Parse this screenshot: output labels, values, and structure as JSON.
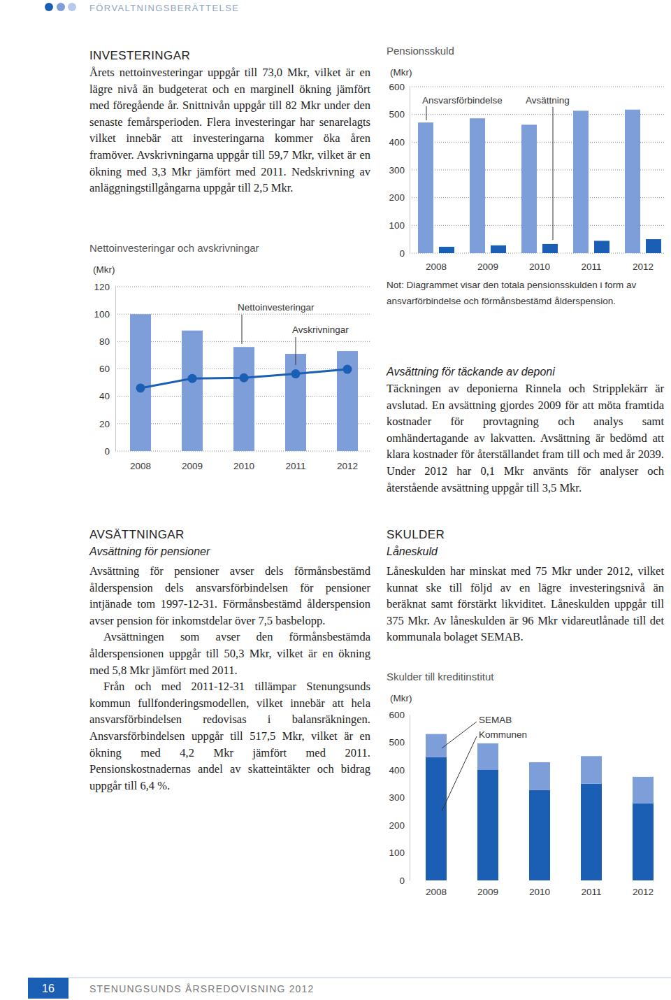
{
  "header": {
    "title": "FÖRVALTNINGSBERÄTTELSE"
  },
  "sections": [
    {
      "heading": "INVESTERINGAR",
      "paragraphs": [
        "Årets nettoinvesteringar uppgår till 73,0 Mkr, vilket är en lägre nivå än budgeterat och en marginell ökning jämfört med föregående år. Snittnivån uppgår till 82 Mkr under den senaste femårsperioden. Flera investeringar har senarelagts vilket innebär att investeringarna kommer öka åren framöver. Avskrivningarna uppgår till 59,7 Mkr, vilket är en ökning med 3,3 Mkr jämfört med 2011. Nedskrivning av anläggningstillgångarna uppgår till 2,5 Mkr."
      ]
    },
    {
      "heading": "Avsättning för täckande av deponi",
      "paragraphs": [
        "Täckningen av deponierna Rinnela och Stripplekärr är avslutad. En avsättning gjordes 2009 för att möta framtida kostnader för provtagning och analys samt omhändertagande av lakvatten. Avsättning är bedömd att klara kostnader för återställandet fram till och med år 2039. Under 2012 har 0,1 Mkr använts för analyser och återstående avsättning uppgår till 3,5 Mkr."
      ]
    },
    {
      "heading": "AVSÄTTNINGAR",
      "subheading": "Avsättning för pensioner",
      "paragraphs": [
        "Avsättning för pensioner avser dels förmånsbestämd ålderspension dels ansvarsförbindelsen för pensioner intjänade tom 1997-12-31. Förmånsbestämd ålderspension avser pension för inkomstdelar över 7,5 basbelopp.",
        "Avsättningen som avser den förmånsbestämda ålderspensionen uppgår till 50,3 Mkr, vilket är en ökning med 5,8 Mkr jämfört med 2011.",
        "Från och med 2011-12-31 tillämpar Stenungsunds kommun fullfonderingsmodellen, vilket innebär att hela ansvarsförbindelsen redovisas i balansräkningen. Ansvarsförbindelsen uppgår till 517,5 Mkr, vilket är en ökning med 4,2 Mkr jämfört med 2011. Pensionskostnadernas andel av skatteintäkter och bidrag uppgår till 6,4 %."
      ]
    },
    {
      "heading": "SKULDER",
      "subheading": "Låneskuld",
      "paragraphs": [
        "Låneskulden har minskat med 75 Mkr under 2012, vilket kunnat ske till följd av en lägre investeringsnivå än beräknat samt förstärkt likviditet. Låneskulden uppgår till 375 Mkr. Av låneskulden är 96 Mkr vidareutlånade till det kommunala bolaget SEMAB."
      ]
    }
  ],
  "chart_data": [
    {
      "type": "bar",
      "title": "Nettoinvesteringar och avskrivningar",
      "y_label": "(Mkr)",
      "categories": [
        "2008",
        "2009",
        "2010",
        "2011",
        "2012"
      ],
      "series": [
        {
          "name": "Nettoinvesteringar",
          "type": "bar",
          "color": "#7e9ed9",
          "values": [
            100,
            88,
            76,
            71,
            73
          ]
        },
        {
          "name": "Avskrivningar",
          "type": "line",
          "color": "#1b5fb5",
          "marker": "circle",
          "values": [
            46,
            53,
            53.5,
            56.4,
            59.7
          ]
        }
      ],
      "ylim": [
        0,
        120
      ],
      "yticks": [
        0,
        20,
        40,
        60,
        80,
        100,
        120
      ],
      "grid": true
    },
    {
      "type": "bar",
      "title": "Pensionsskuld",
      "y_label": "(Mkr)",
      "caption": "Not: Diagrammet visar den totala pensionsskulden i form av ansvarförbindelse och förmånsbestämd ålderspension.",
      "categories": [
        "2008",
        "2009",
        "2010",
        "2011",
        "2012"
      ],
      "series": [
        {
          "name": "Ansvarsförbindelse",
          "color": "#7e9ed9",
          "values": [
            471,
            486,
            463,
            513.3,
            517.5
          ]
        },
        {
          "name": "Avsättning",
          "color": "#1b5fb5",
          "values": [
            23,
            28,
            33,
            44.5,
            50.3
          ]
        }
      ],
      "ylim": [
        0,
        600
      ],
      "yticks": [
        0,
        100,
        200,
        300,
        400,
        500,
        600
      ],
      "grid": true
    },
    {
      "type": "bar",
      "stacked": true,
      "title": "Skulder till kreditinstitut",
      "y_label": "(Mkr)",
      "categories": [
        "2008",
        "2009",
        "2010",
        "2011",
        "2012"
      ],
      "series": [
        {
          "name": "Kommunen",
          "color": "#1b5fb5",
          "values": [
            446,
            400,
            327,
            350,
            279
          ]
        },
        {
          "name": "SEMAB",
          "color": "#7e9ed9",
          "values": [
            84,
            96,
            101,
            100,
            96
          ]
        }
      ],
      "ylim": [
        0,
        600
      ],
      "yticks": [
        0,
        100,
        200,
        300,
        400,
        500,
        600
      ],
      "grid": false
    }
  ],
  "footer": {
    "page_number": "16",
    "title": "STENUNGSUNDS ÅRSREDOVISNING 2012"
  }
}
